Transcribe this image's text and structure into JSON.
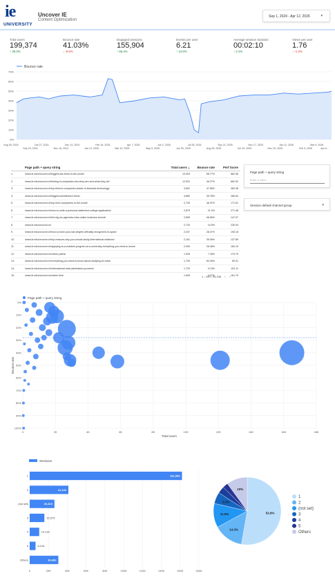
{
  "header": {
    "logo_text": "ie",
    "logo_sub": "UNIVERSITY",
    "title": "Uncover IE",
    "subtitle": "Content Optimization",
    "date_range": "Sep 1, 2024 - Apr 12, 2026"
  },
  "kpis": [
    {
      "label": "Total users",
      "value": "199,374",
      "delta": "39.3%",
      "dir": "up"
    },
    {
      "label": "Bounce rate",
      "value": "41.03%",
      "delta": "-9.6%",
      "dir": "down"
    },
    {
      "label": "Engaged sessions",
      "value": "155,904",
      "delta": "66.4%",
      "dir": "up"
    },
    {
      "label": "Events per user",
      "value": "6.21",
      "delta": "13.6%",
      "dir": "up"
    },
    {
      "label": "Average session duration",
      "value": "00:02:10",
      "delta": "2.1%",
      "dir": "up"
    },
    {
      "label": "Views per user",
      "value": "1.76",
      "delta": "-1.4%",
      "dir": "down"
    }
  ],
  "colors": {
    "accent": "#4285f4",
    "brand": "#0a3c8c",
    "up": "#188038",
    "down": "#d93025"
  },
  "line_chart": {
    "legend": "Bounce rate",
    "y_ticks": [
      "70%",
      "60%",
      "50%",
      "40%",
      "30%",
      "20%",
      "10%",
      "0%"
    ],
    "x_ticks_top": [
      "Aug 28, 2024",
      "Oct 27, 2024",
      "Dec 14, 2024",
      "Feb 16, 2025",
      "Apr 7, 2025",
      "Jun 2, 2025",
      "Jul 28, 2025",
      "Sep 22, 2025",
      "Nov 17, 2025",
      "Jan 12, 2026",
      "Mar 9, 2026"
    ],
    "x_ticks_bottom": [
      "Sep 23, 2024",
      "Nov 18, 2024",
      "Jan 13, 2025",
      "Mar 10, 2025",
      "May 5, 2025",
      "Jun 30, 2025",
      "Aug 25, 2025",
      "Oct 20, 2025",
      "Dec 15, 2025",
      "Feb 9, 2026",
      "Apr 6..."
    ]
  },
  "table": {
    "columns": [
      "Page path + query string",
      "Total users",
      "Bounce rate",
      "Perf Score"
    ],
    "sort_icon": "▲",
    "rows": [
      [
        "1.",
        "/www.ie.edu/uncover-ie/biggest-tax-firms-in-the-world/",
        "10,093",
        "56.77%",
        "882.56"
      ],
      [
        "2.",
        "/www.ie.edu/uncover-ie/finding-it-companies-who-they-are-and-what-they-do/",
        "12,931",
        "46.27%",
        "662.52"
      ],
      [
        "3.",
        "/www.ie.edu/uncover-ie/top-fintech-companies-leader-in-financial-technology/",
        "3,651",
        "47.65%",
        "383.38"
      ],
      [
        "4.",
        "/www.ie.edu/uncover-ie/biggest-architecture-firms/",
        "4,680",
        "39.78%",
        "280.64"
      ],
      [
        "5.",
        "/www.ie.edu/uncover-ie/top-tech-companies-in-the-world/",
        "2,740",
        "46.37%",
        "171.51"
      ],
      [
        "6.",
        "/www.ie.edu/uncover-ie/how-to-write-a-personal-statement-college-application/",
        "2,879",
        "21.2%",
        "271.48"
      ],
      [
        "7.",
        "/www.ie.edu/uncover-ie/the-big-six-agencies-mba-online-business-school/",
        "2,899",
        "46.56%",
        "147.07"
      ],
      [
        "8.",
        "/www.ie.edu/uncover-ie/",
        "2,733",
        "15.5%",
        "230.94"
      ],
      [
        "9.",
        "/www.ie.edu/uncover-ie/how-to-have-your-law-degree-officially-recognized-in-spain/",
        "2,207",
        "28.47%",
        "193.18"
      ],
      [
        "10.",
        "/www.ie.edu/uncover-ie/top-reasons-why-you-should-study-international-relations/",
        "2,161",
        "35.95%",
        "137.89"
      ],
      [
        "11.",
        "/www.ie.edu/uncover-ie/applying-to-a-masters-program-at-a-university-everything-you-need-to-know/",
        "2,090",
        "26.48%",
        "160.19"
      ],
      [
        "12.",
        "/www.ie.edu/uncover-ie/career-paths/",
        "1,939",
        "7.26%",
        "179.79"
      ],
      [
        "13.",
        "/www.ie.edu/uncover-ie/everything-you-need-to-know-about-studying-an-mba/",
        "1,794",
        "60.49%",
        "69.31"
      ],
      [
        "14.",
        "/www.ie.edu/uncover-ie/international-mba-admissions-process/",
        "1,723",
        "12.5%",
        "151.11"
      ],
      [
        "15.",
        "/www.ie.edu/uncover-ie/career-tips/",
        "1,649",
        "4.27%",
        "161.79"
      ]
    ],
    "pager": "1 - 100 / 34,206",
    "prev_icon": "‹",
    "next_icon": "›"
  },
  "filters": {
    "page_path_label": "Page path + query string",
    "page_path_placeholder": "Enter a value",
    "channel_label": "Session default channel group"
  },
  "chart_data": [
    {
      "type": "line",
      "title": "",
      "series": [
        {
          "name": "Bounce rate"
        }
      ],
      "x_range": [
        "2024-08-28",
        "2026-04-12"
      ],
      "ylim": [
        0,
        70
      ],
      "x": [
        "2024-08-28",
        "2024-09-10",
        "2024-09-23",
        "2024-10-10",
        "2024-10-27",
        "2024-11-18",
        "2024-12-14",
        "2025-01-13",
        "2025-02-05",
        "2025-02-16",
        "2025-02-24",
        "2025-03-10",
        "2025-04-07",
        "2025-05-05",
        "2025-06-02",
        "2025-06-30",
        "2025-07-10",
        "2025-07-20",
        "2025-07-28",
        "2025-08-05",
        "2025-08-10",
        "2025-08-25",
        "2025-09-22",
        "2025-10-20",
        "2025-11-17",
        "2025-12-15",
        "2026-01-12",
        "2026-02-09",
        "2026-03-09",
        "2026-04-06",
        "2026-04-12"
      ],
      "y": [
        38,
        42,
        43,
        44,
        42,
        45,
        46,
        44,
        46,
        63,
        62,
        38,
        40,
        43,
        44,
        41,
        42,
        27,
        10,
        7,
        37,
        39,
        41,
        45,
        46,
        46,
        48,
        47,
        48,
        49,
        50
      ],
      "grid": true,
      "legend_position": "top-left"
    },
    {
      "type": "scatter",
      "title": "",
      "series": [
        {
          "name": "Page path + query string"
        }
      ],
      "xlabel": "Total users",
      "ylabel": "Bounce rate",
      "xlim": [
        0,
        18000
      ],
      "ylim": [
        0,
        100
      ],
      "x_ticks": [
        "0",
        "2K",
        "4K",
        "6K",
        "8K",
        "10K",
        "12K",
        "14K",
        "16K",
        "18K"
      ],
      "y_ticks": [
        "0%",
        "10%",
        "20%",
        "30%",
        "40%",
        "50%",
        "60%",
        "70%",
        "80%",
        "90%",
        "100%"
      ],
      "reference_y": 28,
      "points": [
        {
          "x": 16500,
          "y": 40,
          "r": 18
        },
        {
          "x": 12100,
          "y": 46,
          "r": 14
        },
        {
          "x": 2600,
          "y": 36,
          "r": 11
        },
        {
          "x": 2700,
          "y": 21,
          "r": 13
        },
        {
          "x": 2900,
          "y": 46,
          "r": 9
        },
        {
          "x": 2800,
          "y": 32,
          "r": 10
        },
        {
          "x": 2200,
          "y": 28,
          "r": 8
        },
        {
          "x": 2100,
          "y": 11,
          "r": 10
        },
        {
          "x": 1900,
          "y": 7,
          "r": 8
        },
        {
          "x": 1800,
          "y": 12,
          "r": 9
        },
        {
          "x": 1650,
          "y": 4,
          "r": 8
        },
        {
          "x": 4650,
          "y": 40,
          "r": 9
        },
        {
          "x": 5800,
          "y": 47,
          "r": 10
        },
        {
          "x": 3000,
          "y": 48,
          "r": 6
        },
        {
          "x": 2700,
          "y": 43,
          "r": 6
        },
        {
          "x": 1500,
          "y": 15,
          "r": 6
        },
        {
          "x": 1200,
          "y": 20,
          "r": 5
        },
        {
          "x": 1000,
          "y": 8,
          "r": 5
        },
        {
          "x": 900,
          "y": 30,
          "r": 4
        },
        {
          "x": 800,
          "y": 43,
          "r": 4
        },
        {
          "x": 700,
          "y": 2,
          "r": 4
        },
        {
          "x": 600,
          "y": 14,
          "r": 4
        },
        {
          "x": 500,
          "y": 25,
          "r": 3
        },
        {
          "x": 400,
          "y": 38,
          "r": 3
        },
        {
          "x": 300,
          "y": 48,
          "r": 3
        },
        {
          "x": 250,
          "y": 6,
          "r": 3
        },
        {
          "x": 200,
          "y": 18,
          "r": 2.5
        },
        {
          "x": 150,
          "y": 55,
          "r": 2.5
        },
        {
          "x": 120,
          "y": 62,
          "r": 2
        },
        {
          "x": 100,
          "y": 33,
          "r": 2
        },
        {
          "x": 80,
          "y": 0,
          "r": 2.5
        },
        {
          "x": 60,
          "y": 70,
          "r": 2
        },
        {
          "x": 50,
          "y": 100,
          "r": 2
        },
        {
          "x": 40,
          "y": 80,
          "r": 2
        },
        {
          "x": 30,
          "y": 90,
          "r": 2
        },
        {
          "x": 1100,
          "y": 35,
          "r": 4
        },
        {
          "x": 1300,
          "y": 28,
          "r": 4
        },
        {
          "x": 700,
          "y": 52,
          "r": 3
        },
        {
          "x": 350,
          "y": 65,
          "r": 2
        },
        {
          "x": 1600,
          "y": 24,
          "r": 5
        }
      ],
      "legend_position": "top-left"
    },
    {
      "type": "bar",
      "title": "",
      "series": [
        {
          "name": "Sessions"
        }
      ],
      "categories": [
        "1",
        "2",
        "(not set)",
        "3",
        "4",
        "5",
        "Others"
      ],
      "values": [
        161993,
        41142,
        26315,
        15575,
        10118,
        6216,
        30493
      ],
      "value_labels": [
        "161,993",
        "41,142",
        "26,315",
        "15,575",
        "10,118",
        "6,216",
        "30,493"
      ],
      "xlim": [
        0,
        180000
      ],
      "x_ticks": [
        "0",
        "20K",
        "40K",
        "60K",
        "80K",
        "100K",
        "120K",
        "140K",
        "160K",
        "180K"
      ],
      "legend_position": "top-left"
    },
    {
      "type": "pie",
      "title": "",
      "categories": [
        "1",
        "2",
        "(not set)",
        "3",
        "4",
        "5",
        "Others"
      ],
      "values": [
        52.8,
        14.3,
        11.5,
        5.5,
        3.3,
        2.6,
        10.0
      ],
      "labels": [
        "52.8%",
        "14.3%",
        "11.5%",
        "5.5%",
        "",
        "",
        "10%"
      ],
      "colors": [
        "#bbdefb",
        "#64b5f6",
        "#2196f3",
        "#1565c0",
        "#1a3e9c",
        "#283593",
        "#c5cae9"
      ],
      "legend_position": "right"
    }
  ]
}
